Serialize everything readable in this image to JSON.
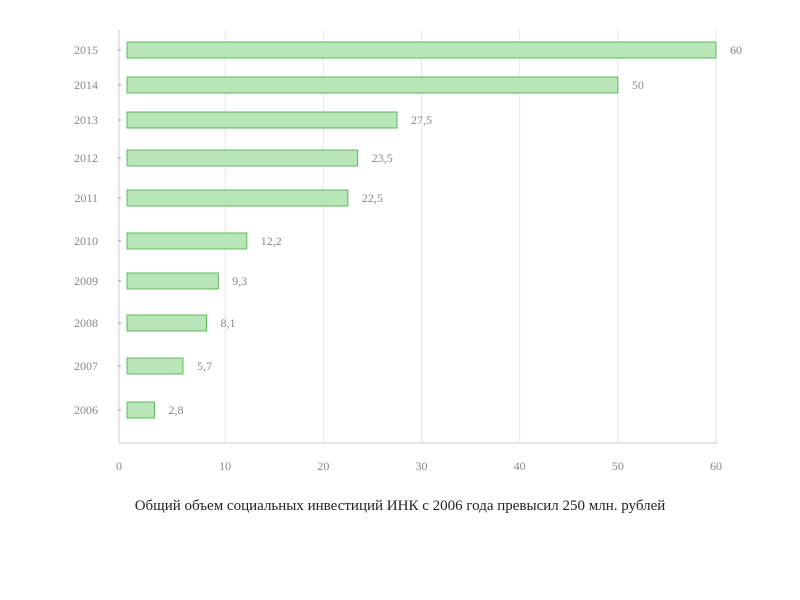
{
  "caption": "Общий объем социальных инвестиций ИНК с 2006 года превысил 250 млн. рублей",
  "chart_data": {
    "type": "bar",
    "orientation": "horizontal",
    "categories": [
      "2015",
      "2014",
      "2013",
      "2012",
      "2011",
      "2010",
      "2009",
      "2008",
      "2007",
      "2006"
    ],
    "values": [
      60,
      50,
      27.5,
      23.5,
      22.5,
      12.2,
      9.3,
      8.1,
      5.7,
      2.8
    ],
    "value_labels": [
      "60",
      "50",
      "27,5",
      "23,5",
      "22,5",
      "12,2",
      "9,3",
      "8,1",
      "5,7",
      "2,8"
    ],
    "x_ticks": [
      "0",
      "10",
      "20",
      "30",
      "40",
      "50",
      "60"
    ],
    "xlim": [
      0,
      60
    ],
    "grid": true,
    "legend": "none",
    "title": "",
    "xlabel": "",
    "ylabel": "",
    "colors": {
      "bar_fill": "#b8e6b8",
      "bar_stroke": "#5cb85c",
      "grid": "#e6e6e6",
      "axis": "#cccccc",
      "label": "#888888"
    }
  }
}
